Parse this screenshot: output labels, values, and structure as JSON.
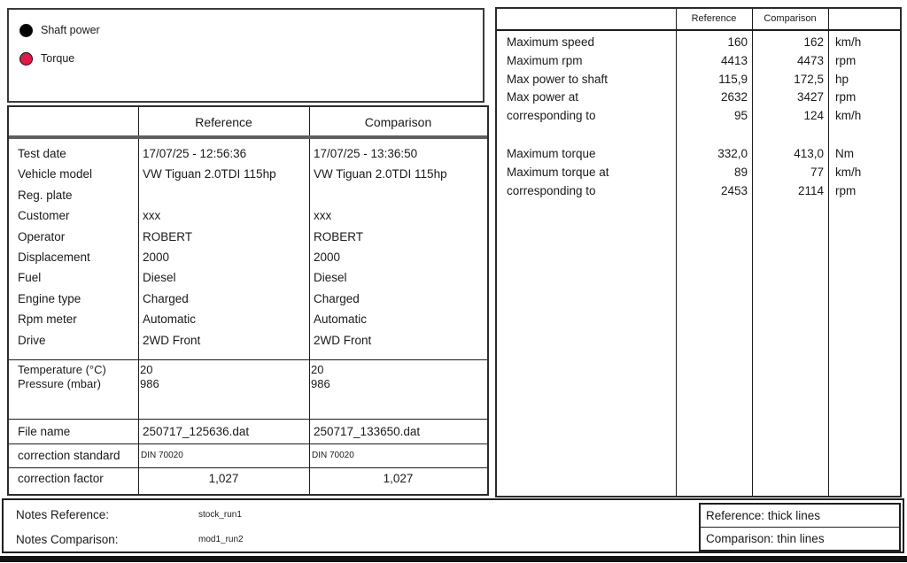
{
  "colors": {
    "shaft_power": "#000000",
    "torque": "#e51648",
    "header_rule": "#5f5f5f"
  },
  "plot_legend": {
    "items": [
      {
        "label": "Shaft power",
        "color": "#000000"
      },
      {
        "label": "Torque",
        "color": "#e51648"
      }
    ]
  },
  "info_table": {
    "columns": [
      "Reference",
      "Comparison"
    ],
    "rows": [
      {
        "label": "Test date",
        "reference": "17/07/25 - 12:56:36",
        "comparison": "17/07/25 - 13:36:50"
      },
      {
        "label": "Vehicle model",
        "reference": "VW Tiguan 2.0TDI 115hp",
        "comparison": "VW Tiguan 2.0TDI 115hp"
      },
      {
        "label": "Reg. plate",
        "reference": "",
        "comparison": ""
      },
      {
        "label": "Customer",
        "reference": "xxx",
        "comparison": "xxx"
      },
      {
        "label": "Operator",
        "reference": "ROBERT",
        "comparison": "ROBERT"
      },
      {
        "label": "Displacement",
        "reference": "2000",
        "comparison": "2000"
      },
      {
        "label": "Fuel",
        "reference": "Diesel",
        "comparison": "Diesel"
      },
      {
        "label": "Engine type",
        "reference": "Charged",
        "comparison": "Charged"
      },
      {
        "label": "Rpm meter",
        "reference": "Automatic",
        "comparison": "Automatic"
      },
      {
        "label": "Drive",
        "reference": "2WD Front",
        "comparison": "2WD Front"
      }
    ],
    "environment_rows": [
      {
        "label": "Temperature (°C)",
        "reference": "20",
        "comparison": "20"
      },
      {
        "label": "Pressure (mbar)",
        "reference": "986",
        "comparison": "986"
      }
    ],
    "file_name": {
      "label": "File name",
      "reference": "250717_125636.dat",
      "comparison": "250717_133650.dat"
    },
    "correction_standard": {
      "label": "correction standard",
      "reference": "DIN 70020",
      "comparison": "DIN 70020"
    },
    "correction_factor": {
      "label": "correction factor",
      "reference": "1,027",
      "comparison": "1,027"
    }
  },
  "results_table": {
    "columns": [
      "Reference",
      "Comparison"
    ],
    "speed_power_rows": [
      {
        "label": "Maximum speed",
        "reference": "160",
        "comparison": "162",
        "unit": "km/h"
      },
      {
        "label": "Maximum rpm",
        "reference": "4413",
        "comparison": "4473",
        "unit": "rpm"
      },
      {
        "label": "Max power to shaft",
        "reference": "115,9",
        "comparison": "172,5",
        "unit": "hp"
      },
      {
        "label": "Max power at",
        "reference": "2632",
        "comparison": "3427",
        "unit": "rpm"
      },
      {
        "label": "corresponding to",
        "reference": "95",
        "comparison": "124",
        "unit": "km/h"
      }
    ],
    "torque_rows": [
      {
        "label": "Maximum torque",
        "reference": "332,0",
        "comparison": "413,0",
        "unit": "Nm"
      },
      {
        "label": "Maximum torque at",
        "reference": "89",
        "comparison": "77",
        "unit": "km/h"
      },
      {
        "label": "corresponding to",
        "reference": "2453",
        "comparison": "2114",
        "unit": "rpm"
      }
    ]
  },
  "notes": {
    "reference_label": "Notes Reference:",
    "reference_value": "stock_run1",
    "comparison_label": "Notes Comparison:",
    "comparison_value": "mod1_run2"
  },
  "line_styles_legend": {
    "reference": "Reference: thick lines",
    "comparison": "Comparison: thin lines"
  }
}
